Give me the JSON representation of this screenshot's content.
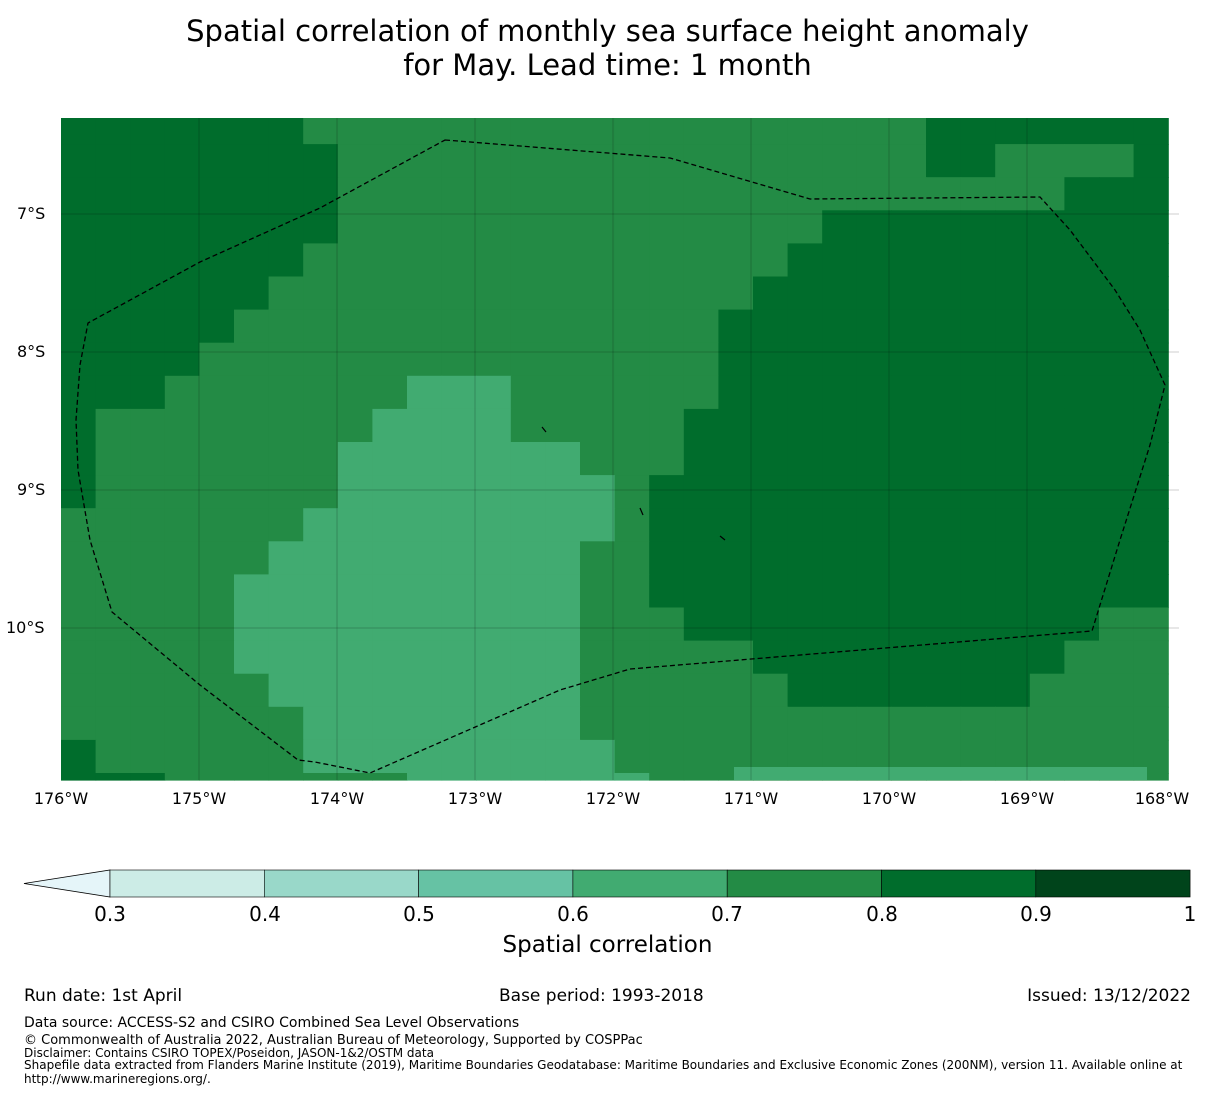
{
  "title": {
    "line1": "Spatial correlation of monthly sea surface height anomaly",
    "line2": "for May. Lead time: 1 month"
  },
  "map": {
    "lat_labels": [
      "7°S",
      "8°S",
      "9°S",
      "10°S"
    ],
    "lon_labels": [
      "176°W",
      "175°W",
      "174°W",
      "173°W",
      "172°W",
      "171°W",
      "170°W",
      "169°W",
      "168°W"
    ],
    "colors": {
      "c60_70": "#41ab71",
      "c70_80": "#238b45",
      "c80_90": "#006d2c",
      "boundary": "#000000"
    }
  },
  "colorbar": {
    "ticks": [
      "0.3",
      "0.4",
      "0.5",
      "0.6",
      "0.7",
      "0.8",
      "0.9",
      "1"
    ],
    "colors": [
      "#e5f5f9",
      "#ccece6",
      "#99d8c9",
      "#66c2a4",
      "#41ab71",
      "#238b45",
      "#006d2c",
      "#00441b"
    ],
    "label": "Spatial correlation"
  },
  "footer": {
    "run_date": "Run date: 1st April",
    "base_period": "Base period: 1993-2018",
    "issued": "Issued: 13/12/2022",
    "data_source": "Data source: ACCESS-S2 and CSIRO Combined Sea Level Observations",
    "copyright": "© Commonwealth of Australia 2022, Australian Bureau of Meteorology, Supported by COSPPac",
    "disclaimer": "Disclaimer: Contains CSIRO TOPEX/Poseidon, JASON-1&2/OSTM data",
    "shapefile_line1": "Shapefile data extracted from Flanders Marine Institute (2019), Maritime Boundaries Geodatabase: Maritime Boundaries and Exclusive Economic Zones (200NM), version 11. Available online at",
    "shapefile_line2": "http://www.marineregions.org/."
  }
}
